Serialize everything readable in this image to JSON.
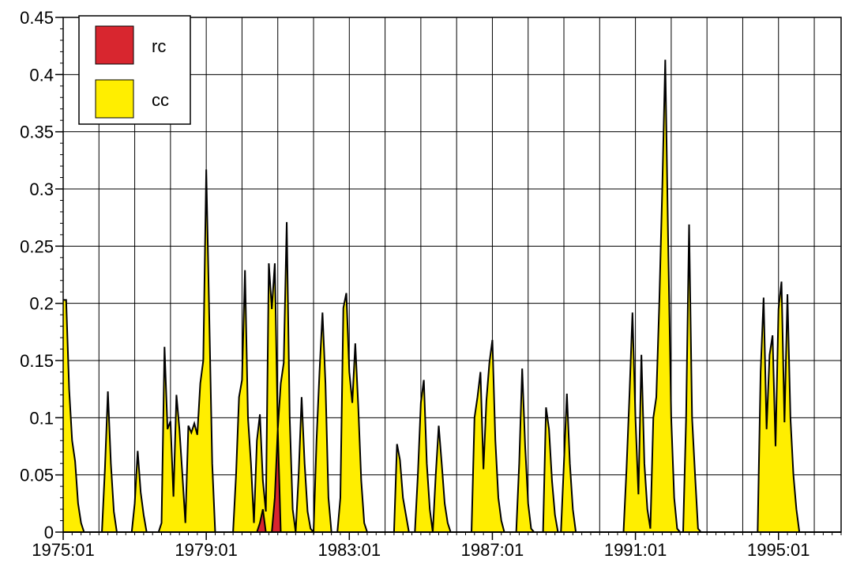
{
  "chart_data": {
    "type": "area",
    "title": "",
    "xlabel": "",
    "ylabel": "",
    "xlim": [
      "1975:01",
      "1996:10"
    ],
    "ylim": [
      0,
      0.45
    ],
    "grid": true,
    "legend": {
      "placement": "top-left",
      "entries": [
        "rc",
        "cc"
      ]
    },
    "y_ticks": [
      "0",
      "0.05",
      "0.1",
      "0.15",
      "0.2",
      "0.25",
      "0.3",
      "0.35",
      "0.4",
      "0.45"
    ],
    "x_ticks": [
      "1975:01",
      "1979:01",
      "1983:01",
      "1987:01",
      "1991:01",
      "1995:01"
    ],
    "series": [
      {
        "name": "cc",
        "color": "#ffee00",
        "points": [
          [
            "1975:01",
            0.203
          ],
          [
            "1975:02",
            0.203
          ],
          [
            "1975:03",
            0.125
          ],
          [
            "1975:04",
            0.08
          ],
          [
            "1975:05",
            0.062
          ],
          [
            "1975:06",
            0.025
          ],
          [
            "1975:07",
            0.008
          ],
          [
            "1975:08",
            0
          ],
          [
            "1976:02",
            0
          ],
          [
            "1976:03",
            0.055
          ],
          [
            "1976:04",
            0.123
          ],
          [
            "1976:05",
            0.06
          ],
          [
            "1976:06",
            0.018
          ],
          [
            "1976:07",
            0
          ],
          [
            "1977:00",
            0
          ],
          [
            "1977:01",
            0.025
          ],
          [
            "1977:02",
            0.071
          ],
          [
            "1977:03",
            0.035
          ],
          [
            "1977:04",
            0.015
          ],
          [
            "1977:05",
            0
          ],
          [
            "1977:09",
            0
          ],
          [
            "1977:10",
            0.008
          ],
          [
            "1977:11",
            0.162
          ],
          [
            "1977:12",
            0.09
          ],
          [
            "1978:01",
            0.097
          ],
          [
            "1978:02",
            0.031
          ],
          [
            "1978:03",
            0.12
          ],
          [
            "1978:04",
            0.09
          ],
          [
            "1978:05",
            0.05
          ],
          [
            "1978:06",
            0.008
          ],
          [
            "1978:07",
            0.093
          ],
          [
            "1978:08",
            0.087
          ],
          [
            "1978:09",
            0.095
          ],
          [
            "1978:10",
            0.085
          ],
          [
            "1978:11",
            0.13
          ],
          [
            "1978:12",
            0.15
          ],
          [
            "1979:01",
            0.317
          ],
          [
            "1979:02",
            0.19
          ],
          [
            "1979:03",
            0.06
          ],
          [
            "1979:04",
            0
          ],
          [
            "1979:10",
            0
          ],
          [
            "1979:11",
            0.05
          ],
          [
            "1979:12",
            0.118
          ],
          [
            "1980:01",
            0.133
          ],
          [
            "1980:02",
            0.229
          ],
          [
            "1980:03",
            0.1
          ],
          [
            "1980:04",
            0.06
          ],
          [
            "1980:05",
            0.008
          ],
          [
            "1980:06",
            0.08
          ],
          [
            "1980:07",
            0.103
          ],
          [
            "1980:08",
            0.045
          ],
          [
            "1980:09",
            0.018
          ],
          [
            "1980:10",
            0.235
          ],
          [
            "1980:11",
            0.195
          ],
          [
            "1980:12",
            0.235
          ],
          [
            "1981:01",
            0.09
          ],
          [
            "1981:02",
            0.13
          ],
          [
            "1981:03",
            0.148
          ],
          [
            "1981:04",
            0.271
          ],
          [
            "1981:05",
            0.1
          ],
          [
            "1981:06",
            0.02
          ],
          [
            "1981:07",
            0
          ],
          [
            "1981:08",
            0.05
          ],
          [
            "1981:09",
            0.118
          ],
          [
            "1981:10",
            0.06
          ],
          [
            "1981:11",
            0.018
          ],
          [
            "1981:12",
            0.003
          ],
          [
            "1982:01",
            0
          ],
          [
            "1982:02",
            0.08
          ],
          [
            "1982:03",
            0.14
          ],
          [
            "1982:04",
            0.192
          ],
          [
            "1982:05",
            0.13
          ],
          [
            "1982:06",
            0.03
          ],
          [
            "1982:07",
            0
          ],
          [
            "1982:09",
            0
          ],
          [
            "1982:10",
            0.03
          ],
          [
            "1982:11",
            0.196
          ],
          [
            "1982:12",
            0.209
          ],
          [
            "1983:01",
            0.14
          ],
          [
            "1983:02",
            0.113
          ],
          [
            "1983:03",
            0.165
          ],
          [
            "1983:04",
            0.11
          ],
          [
            "1983:05",
            0.045
          ],
          [
            "1983:06",
            0.008
          ],
          [
            "1983:07",
            0
          ],
          [
            "1984:04",
            0
          ],
          [
            "1984:05",
            0.077
          ],
          [
            "1984:06",
            0.063
          ],
          [
            "1984:07",
            0.03
          ],
          [
            "1984:08",
            0.015
          ],
          [
            "1984:09",
            0
          ],
          [
            "1984:11",
            0
          ],
          [
            "1984:12",
            0.05
          ],
          [
            "1985:01",
            0.113
          ],
          [
            "1985:02",
            0.133
          ],
          [
            "1985:03",
            0.06
          ],
          [
            "1985:04",
            0.02
          ],
          [
            "1985:05",
            0
          ],
          [
            "1985:06",
            0.05
          ],
          [
            "1985:07",
            0.093
          ],
          [
            "1985:08",
            0.06
          ],
          [
            "1985:09",
            0.025
          ],
          [
            "1985:10",
            0.008
          ],
          [
            "1985:11",
            0
          ],
          [
            "1986:06",
            0
          ],
          [
            "1986:07",
            0.1
          ],
          [
            "1986:08",
            0.118
          ],
          [
            "1986:09",
            0.14
          ],
          [
            "1986:10",
            0.055
          ],
          [
            "1986:11",
            0.115
          ],
          [
            "1986:12",
            0.148
          ],
          [
            "1987:01",
            0.168
          ],
          [
            "1987:02",
            0.08
          ],
          [
            "1987:03",
            0.03
          ],
          [
            "1987:04",
            0.01
          ],
          [
            "1987:05",
            0
          ],
          [
            "1987:09",
            0
          ],
          [
            "1987:10",
            0.06
          ],
          [
            "1987:11",
            0.143
          ],
          [
            "1987:12",
            0.075
          ],
          [
            "1988:01",
            0.025
          ],
          [
            "1988:02",
            0.003
          ],
          [
            "1988:03",
            0
          ],
          [
            "1988:06",
            0
          ],
          [
            "1988:07",
            0.109
          ],
          [
            "1988:08",
            0.09
          ],
          [
            "1988:09",
            0.045
          ],
          [
            "1988:10",
            0.015
          ],
          [
            "1988:11",
            0
          ],
          [
            "1988:12",
            0
          ],
          [
            "1989:01",
            0.06
          ],
          [
            "1989:02",
            0.121
          ],
          [
            "1989:03",
            0.06
          ],
          [
            "1989:04",
            0.02
          ],
          [
            "1989:05",
            0
          ],
          [
            "1990:09",
            0
          ],
          [
            "1990:10",
            0.055
          ],
          [
            "1990:11",
            0.12
          ],
          [
            "1990:12",
            0.192
          ],
          [
            "1991:01",
            0.1
          ],
          [
            "1991:02",
            0.033
          ],
          [
            "1991:03",
            0.155
          ],
          [
            "1991:04",
            0.06
          ],
          [
            "1991:05",
            0.02
          ],
          [
            "1991:06",
            0.003
          ],
          [
            "1991:07",
            0.1
          ],
          [
            "1991:08",
            0.118
          ],
          [
            "1991:09",
            0.2
          ],
          [
            "1991:10",
            0.3
          ],
          [
            "1991:11",
            0.413
          ],
          [
            "1991:12",
            0.25
          ],
          [
            "1992:01",
            0.1
          ],
          [
            "1992:02",
            0.03
          ],
          [
            "1992:03",
            0.003
          ],
          [
            "1992:04",
            0
          ],
          [
            "1992:05",
            0
          ],
          [
            "1992:06",
            0.1
          ],
          [
            "1992:07",
            0.269
          ],
          [
            "1992:08",
            0.1
          ],
          [
            "1992:09",
            0.05
          ],
          [
            "1992:10",
            0.003
          ],
          [
            "1992:11",
            0
          ],
          [
            "1994:06",
            0
          ],
          [
            "1994:07",
            0.14
          ],
          [
            "1994:08",
            0.205
          ],
          [
            "1994:09",
            0.09
          ],
          [
            "1994:10",
            0.155
          ],
          [
            "1994:11",
            0.172
          ],
          [
            "1994:12",
            0.075
          ],
          [
            "1995:01",
            0.195
          ],
          [
            "1995:02",
            0.219
          ],
          [
            "1995:03",
            0.096
          ],
          [
            "1995:04",
            0.208
          ],
          [
            "1995:05",
            0.1
          ],
          [
            "1995:06",
            0.05
          ],
          [
            "1995:07",
            0.02
          ],
          [
            "1995:08",
            0
          ]
        ]
      },
      {
        "name": "rc",
        "color": "#d8262f",
        "points": [
          [
            "1980:06",
            0
          ],
          [
            "1980:07",
            0.008
          ],
          [
            "1980:08",
            0.02
          ],
          [
            "1980:09",
            0
          ],
          [
            "1980:11",
            0
          ],
          [
            "1980:12",
            0.03
          ],
          [
            "1981:01",
            0.09
          ],
          [
            "1981:02",
            0
          ]
        ]
      }
    ]
  }
}
